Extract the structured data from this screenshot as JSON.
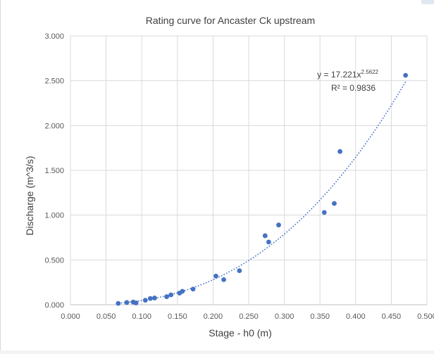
{
  "chart_data": {
    "type": "scatter",
    "title": "Rating curve for Ancaster Ck upstream",
    "xlabel": "Stage - h0 (m)",
    "ylabel": "Discharge (m^3/s)",
    "xlim": [
      0,
      0.5
    ],
    "ylim": [
      0,
      3
    ],
    "x_ticks": [
      0,
      0.05,
      0.1,
      0.15,
      0.2,
      0.25,
      0.3,
      0.35,
      0.4,
      0.45,
      0.5
    ],
    "x_tick_labels": [
      "0.000",
      "0.050",
      "0.100",
      "0.150",
      "0.200",
      "0.250",
      "0.300",
      "0.350",
      "0.400",
      "0.450",
      "0.500"
    ],
    "y_ticks": [
      0,
      0.5,
      1,
      1.5,
      2,
      2.5,
      3
    ],
    "y_tick_labels": [
      "0.000",
      "0.500",
      "1.000",
      "1.500",
      "2.000",
      "2.500",
      "3.000"
    ],
    "grid": true,
    "point_color": "#4472c4",
    "trend_color": "#4472c4",
    "series": [
      {
        "points": [
          [
            0.067,
            0.015
          ],
          [
            0.079,
            0.025
          ],
          [
            0.088,
            0.03
          ],
          [
            0.092,
            0.02
          ],
          [
            0.105,
            0.05
          ],
          [
            0.112,
            0.07
          ],
          [
            0.118,
            0.075
          ],
          [
            0.135,
            0.09
          ],
          [
            0.141,
            0.11
          ],
          [
            0.153,
            0.13
          ],
          [
            0.157,
            0.15
          ],
          [
            0.172,
            0.175
          ],
          [
            0.204,
            0.32
          ],
          [
            0.215,
            0.28
          ],
          [
            0.237,
            0.38
          ],
          [
            0.273,
            0.77
          ],
          [
            0.278,
            0.7
          ],
          [
            0.292,
            0.89
          ],
          [
            0.356,
            1.03
          ],
          [
            0.37,
            1.13
          ],
          [
            0.378,
            1.71
          ],
          [
            0.47,
            2.56
          ]
        ]
      }
    ],
    "trendline": {
      "type": "power",
      "coefficient": 17.221,
      "exponent": 2.5622,
      "x_range": [
        0.067,
        0.47
      ],
      "equation_prefix": "y = 17.221x",
      "equation_exponent": "2.5622",
      "r_squared": "R² = 0.9836"
    }
  }
}
